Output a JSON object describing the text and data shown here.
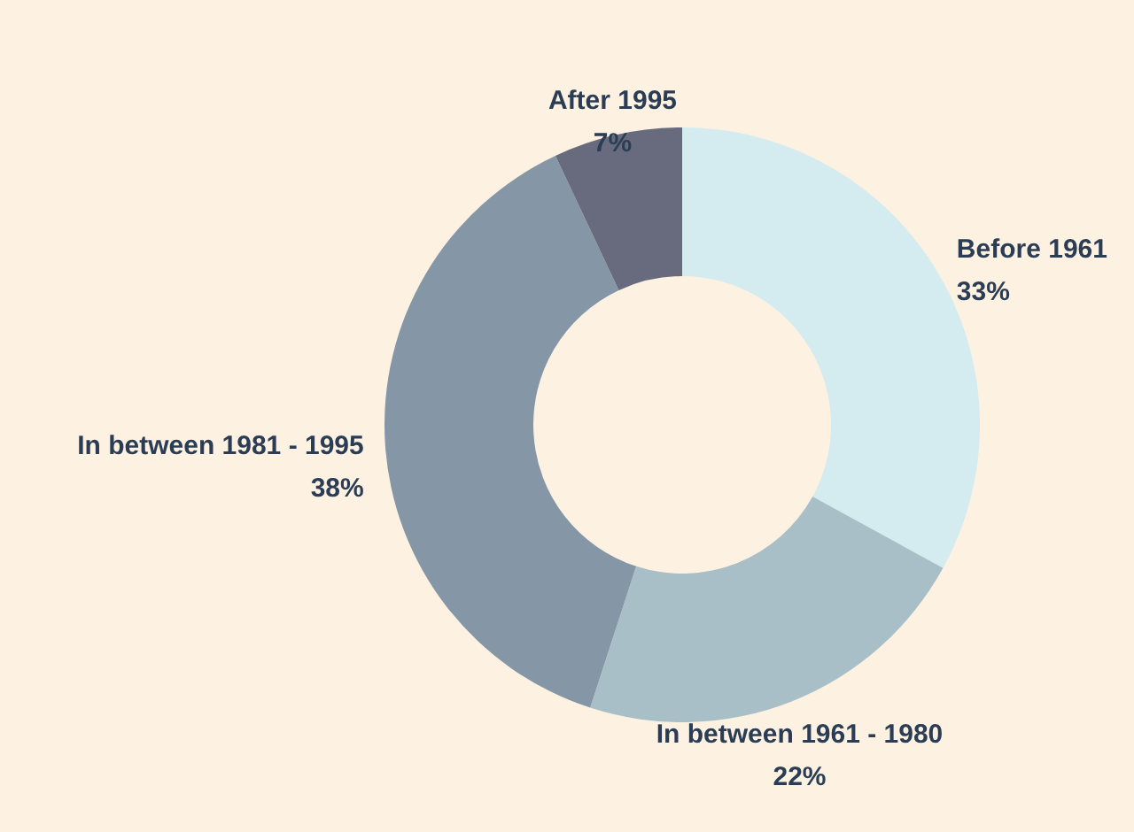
{
  "chart_data": {
    "type": "donut",
    "categories": [
      "Before 1961",
      "In between 1961 - 1980",
      "In between 1981 - 1995",
      "After 1995"
    ],
    "values": [
      33,
      22,
      38,
      7
    ],
    "value_labels": [
      "33%",
      "22%",
      "38%",
      "7%"
    ],
    "colors": [
      "#d4ecef",
      "#a9bfc8",
      "#8597a6",
      "#676b7d"
    ]
  }
}
